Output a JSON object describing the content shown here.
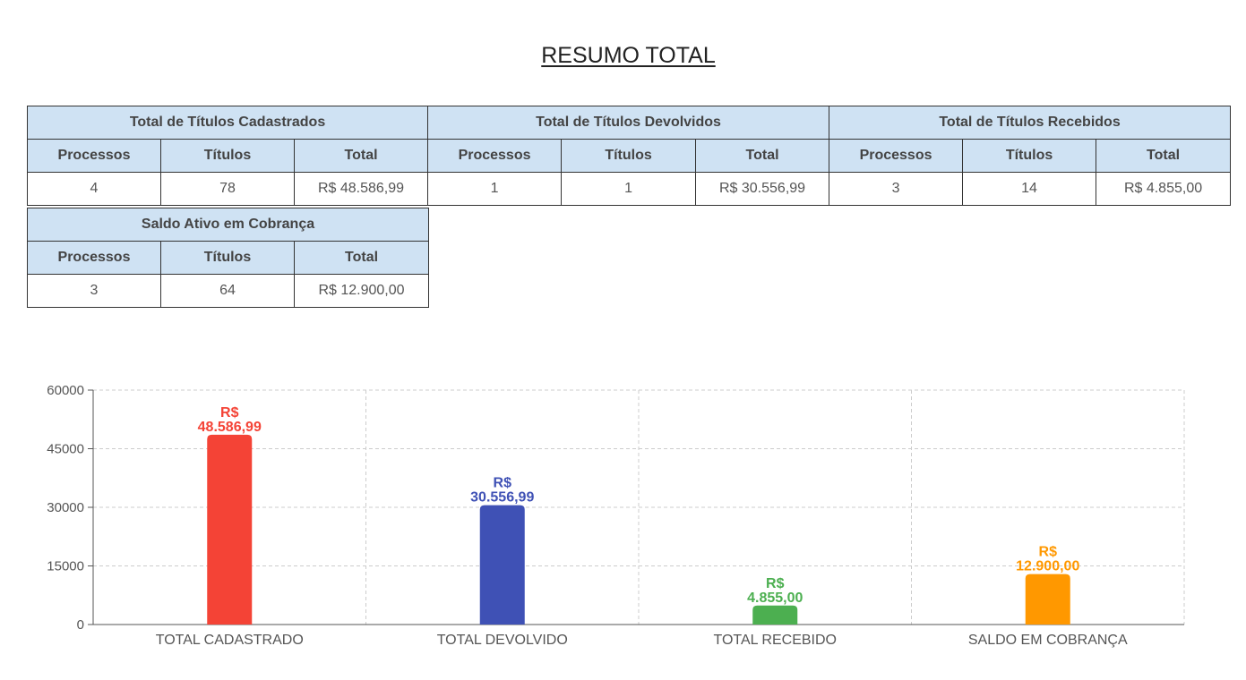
{
  "page_title": "RESUMO TOTAL",
  "column_headers": {
    "processos": "Processos",
    "titulos": "Títulos",
    "total": "Total"
  },
  "groups": [
    {
      "title": "Total de Títulos Cadastrados",
      "processos": "4",
      "titulos": "78",
      "total": "R$ 48.586,99"
    },
    {
      "title": "Total de Títulos Devolvidos",
      "processos": "1",
      "titulos": "1",
      "total": "R$ 30.556,99"
    },
    {
      "title": "Total de Títulos Recebidos",
      "processos": "3",
      "titulos": "14",
      "total": "R$ 4.855,00"
    },
    {
      "title": "Saldo Ativo em Cobrança",
      "processos": "3",
      "titulos": "64",
      "total": "R$ 12.900,00"
    }
  ],
  "chart_data": {
    "type": "bar",
    "categories": [
      "TOTAL CADASTRADO",
      "TOTAL DEVOLVIDO",
      "TOTAL RECEBIDO",
      "SALDO EM COBRANÇA"
    ],
    "values": [
      48586.99,
      30556.99,
      4855.0,
      12900.0
    ],
    "data_labels": [
      [
        "R$",
        "48.586,99"
      ],
      [
        "R$",
        "30.556,99"
      ],
      [
        "R$",
        "4.855,00"
      ],
      [
        "R$",
        "12.900,00"
      ]
    ],
    "colors": [
      "#f44336",
      "#3f51b5",
      "#4caf50",
      "#ff9800"
    ],
    "ylim": [
      0,
      60000
    ],
    "yticks": [
      "0",
      "15000",
      "30000",
      "45000",
      "60000"
    ],
    "ytick_values": [
      0,
      15000,
      30000,
      45000,
      60000
    ],
    "grid": true,
    "grid_style": "dashed",
    "legend": "none"
  }
}
